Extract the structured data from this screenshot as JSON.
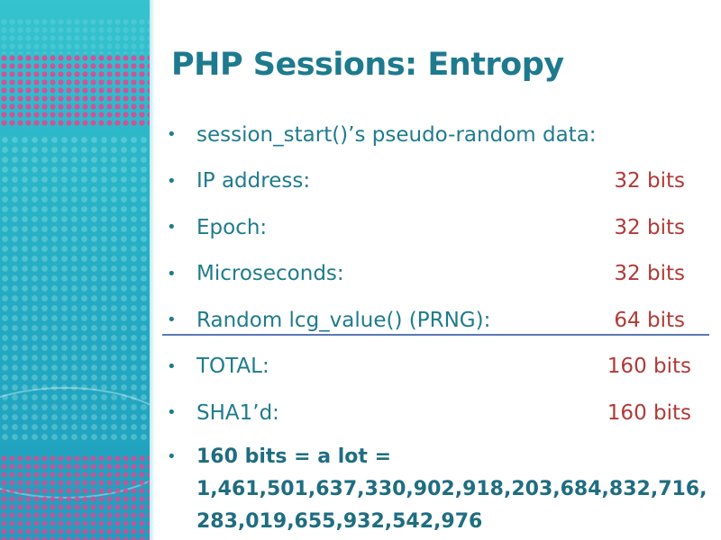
{
  "slide": {
    "title": "PHP Sessions: Entropy",
    "bullets": [
      {
        "label": "session_start()’s pseudo-random data:",
        "value": ""
      },
      {
        "label": "IP address:",
        "value": "32 bits"
      },
      {
        "label": "Epoch:",
        "value": "32 bits"
      },
      {
        "label": "Microseconds:",
        "value": "32 bits"
      },
      {
        "label": "Random lcg_value() (PRNG):",
        "value": "64 bits"
      },
      {
        "label": "TOTAL:",
        "value": "160 bits"
      },
      {
        "label": "SHA1’d:",
        "value": "160 bits"
      }
    ],
    "final": {
      "line1": "160 bits = a lot =",
      "line2": "1,461,501,637,330,902,918,203,684,832,716,",
      "line3": "283,019,655,932,542,976"
    },
    "colors": {
      "title": "#1e7a8e",
      "text": "#1f7b8e",
      "value": "#b13a36",
      "divider": "#5a78b3",
      "band": "#2bb6c8",
      "accent_dots": "#ef3f8f"
    }
  }
}
